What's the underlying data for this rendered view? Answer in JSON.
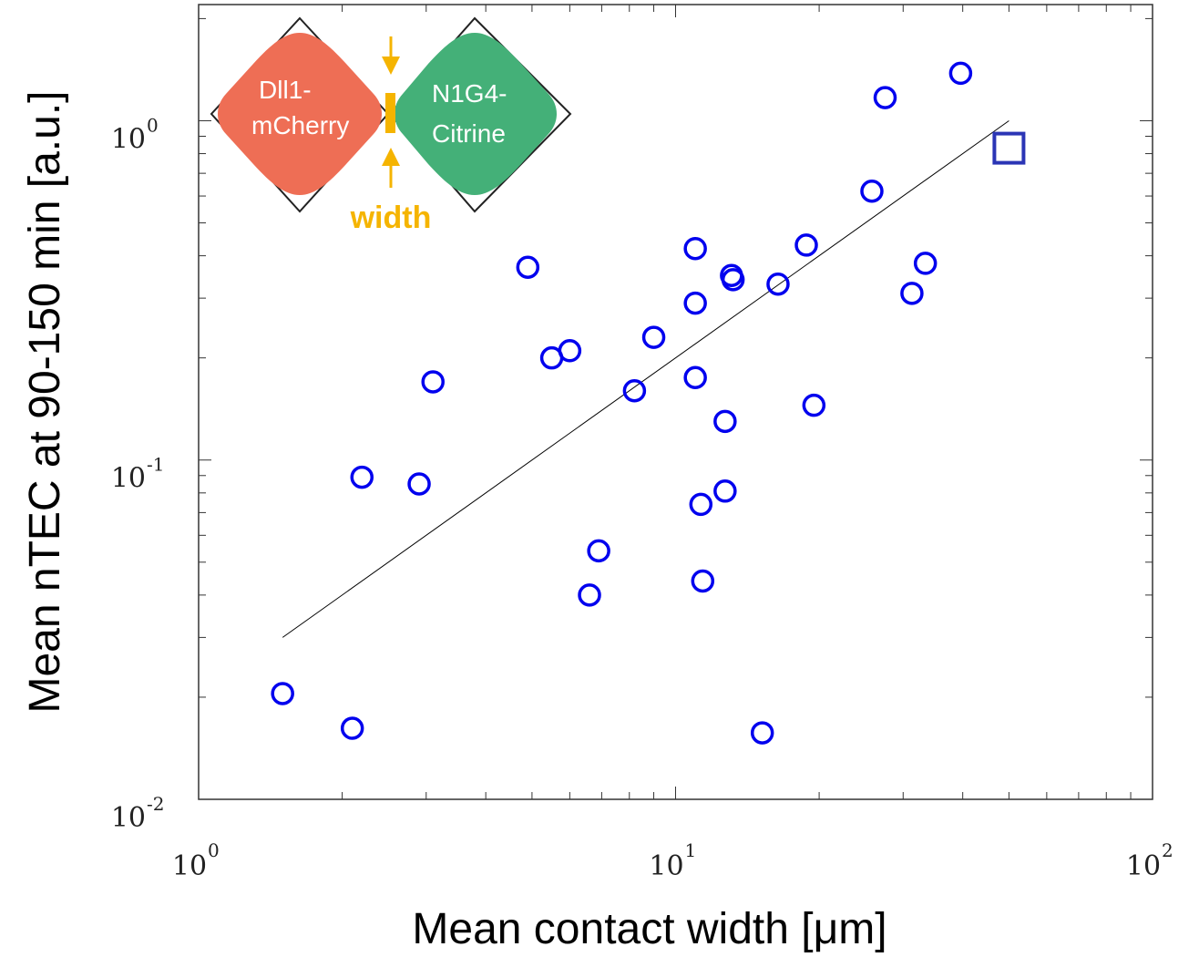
{
  "chart_data": {
    "type": "scatter",
    "xlabel": "Mean contact width [μm]",
    "ylabel": "Mean nTEC at 90-150 min [a.u.]",
    "xscale": "log",
    "yscale": "log",
    "xlim": [
      1,
      100
    ],
    "ylim": [
      0.01,
      2.2
    ],
    "x_ticks": [
      {
        "base": "10",
        "exp": "0",
        "value": 1
      },
      {
        "base": "10",
        "exp": "1",
        "value": 10
      },
      {
        "base": "10",
        "exp": "2",
        "value": 100
      }
    ],
    "y_ticks": [
      {
        "base": "10",
        "exp": "-2",
        "value": 0.01
      },
      {
        "base": "10",
        "exp": "-1",
        "value": 0.1
      },
      {
        "base": "10",
        "exp": "0",
        "value": 1
      }
    ],
    "grid": false,
    "series": [
      {
        "marker": "circle",
        "color": "#0000ee",
        "points": [
          {
            "x": 1.5,
            "y": 0.0205
          },
          {
            "x": 2.1,
            "y": 0.0162
          },
          {
            "x": 2.2,
            "y": 0.089
          },
          {
            "x": 2.9,
            "y": 0.085
          },
          {
            "x": 3.1,
            "y": 0.17
          },
          {
            "x": 4.9,
            "y": 0.37
          },
          {
            "x": 5.5,
            "y": 0.2
          },
          {
            "x": 6.0,
            "y": 0.21
          },
          {
            "x": 6.6,
            "y": 0.04
          },
          {
            "x": 6.9,
            "y": 0.054
          },
          {
            "x": 8.2,
            "y": 0.16
          },
          {
            "x": 9.0,
            "y": 0.23
          },
          {
            "x": 11.0,
            "y": 0.42
          },
          {
            "x": 11.0,
            "y": 0.29
          },
          {
            "x": 11.0,
            "y": 0.175
          },
          {
            "x": 11.3,
            "y": 0.074
          },
          {
            "x": 11.4,
            "y": 0.044
          },
          {
            "x": 12.7,
            "y": 0.13
          },
          {
            "x": 12.7,
            "y": 0.081
          },
          {
            "x": 13.1,
            "y": 0.35
          },
          {
            "x": 13.2,
            "y": 0.34
          },
          {
            "x": 15.2,
            "y": 0.0157
          },
          {
            "x": 16.4,
            "y": 0.33
          },
          {
            "x": 18.8,
            "y": 0.43
          },
          {
            "x": 19.5,
            "y": 0.145
          },
          {
            "x": 25.8,
            "y": 0.62
          },
          {
            "x": 27.5,
            "y": 1.17
          },
          {
            "x": 31.3,
            "y": 0.31
          },
          {
            "x": 33.4,
            "y": 0.38
          },
          {
            "x": 39.6,
            "y": 1.38
          }
        ]
      },
      {
        "marker": "square",
        "color": "#2b35b5",
        "points": [
          {
            "x": 50,
            "y": 0.83
          }
        ]
      }
    ],
    "fit_line": {
      "x": [
        1.5,
        50
      ],
      "y": [
        0.03,
        1.0
      ],
      "color": "#000000"
    }
  },
  "inset": {
    "left_cell_label": [
      "Dll1-",
      "mCherry"
    ],
    "right_cell_label": [
      "N1G4-",
      "Citrine"
    ],
    "width_label": "width",
    "left_cell_color": "#ee6e55",
    "right_cell_color": "#44b078",
    "width_color": "#f5b400"
  }
}
